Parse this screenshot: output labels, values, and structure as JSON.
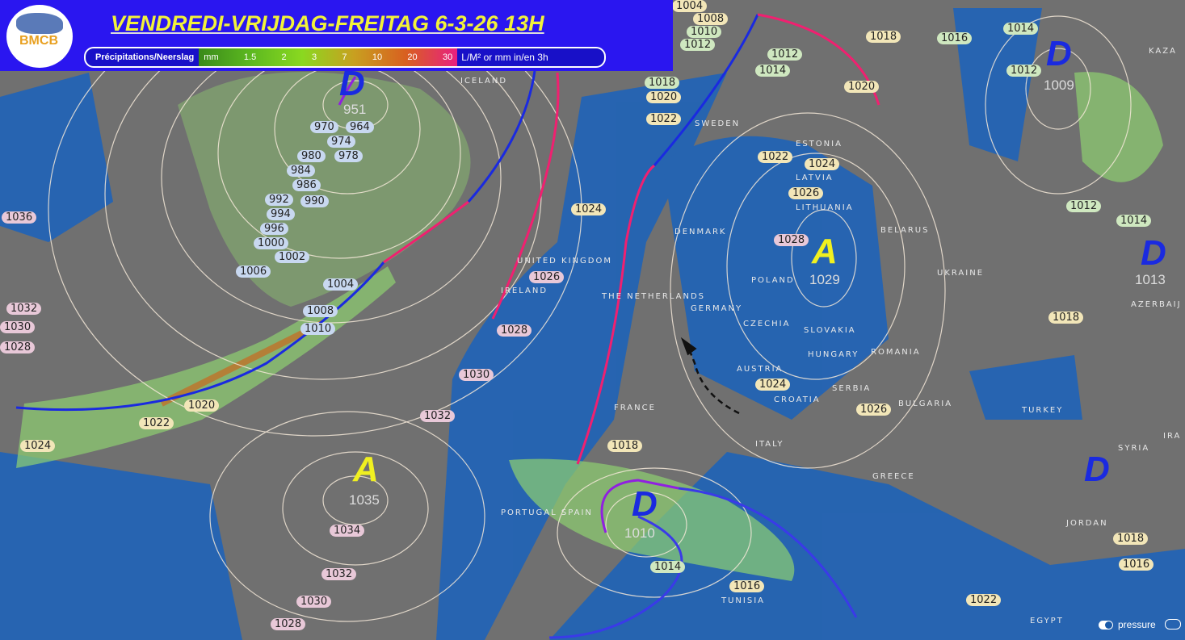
{
  "header": {
    "title": "VENDREDI-VRIJDAG-FREITAG  6-3-26  13H",
    "logo": "BMCB",
    "legend": {
      "label": "Précipitations/Neerslag",
      "scale": [
        "mm",
        "1.5",
        "2",
        "3",
        "7",
        "10",
        "20",
        "30"
      ],
      "unit": "L/M² or mm in/en 3h"
    }
  },
  "systems": [
    {
      "type": "D",
      "value": "951"
    },
    {
      "type": "D",
      "value": "1009"
    },
    {
      "type": "A",
      "value": "1029"
    },
    {
      "type": "D",
      "value": "1013"
    },
    {
      "type": "A",
      "value": "1035"
    },
    {
      "type": "D",
      "value": "1010"
    },
    {
      "type": "D",
      "value": ""
    }
  ],
  "isobar_labels": [
    "1004",
    "1008",
    "1010",
    "1012",
    "1018",
    "1020",
    "1022",
    "1012",
    "1014",
    "1018",
    "1020",
    "1016",
    "1014",
    "1012",
    "964",
    "970",
    "974",
    "978",
    "980",
    "984",
    "986",
    "990",
    "992",
    "994",
    "996",
    "1000",
    "1002",
    "1006",
    "1004",
    "1008",
    "1010",
    "1020",
    "1022",
    "1024",
    "1036",
    "1032",
    "1030",
    "1028",
    "1030",
    "1032",
    "1024",
    "1026",
    "1028",
    "1022",
    "1024",
    "1026",
    "1028",
    "1024",
    "1026",
    "1018",
    "1014",
    "1016",
    "1022",
    "1018",
    "1016",
    "1018",
    "1012",
    "1014",
    "1034",
    "1032",
    "1030",
    "1028"
  ],
  "countries": [
    "IRELAND",
    "UNITED KINGDOM",
    "DENMARK",
    "SWEDEN",
    "ESTONIA",
    "LATVIA",
    "LITHUANIA",
    "BELARUS",
    "POLAND",
    "GERMANY",
    "THE NETHERLANDS",
    "CZECHIA",
    "SLOVAKIA",
    "HUNGARY",
    "ROMANIA",
    "AUSTRIA",
    "CROATIA",
    "SERBIA",
    "BULGARIA",
    "FRANCE",
    "ITALY",
    "GREECE",
    "TURKEY",
    "SYRIA",
    "JORDAN",
    "EGYPT",
    "TUNISIA",
    "UKRAINE",
    "PORTUGAL SPAIN",
    "KAZA",
    "IRA",
    "AZERBAIJ",
    "ICELAND"
  ],
  "controls": {
    "pressure_label": "pressure",
    "pressure_on": true
  },
  "colors": {
    "header_bg": "#2a16f0",
    "title": "#f2f23a",
    "high": "#f0f020",
    "low": "#1a2ae0",
    "cold_front": "#1a2ae0",
    "warm_front": "#f02070",
    "occlusion": "#9020e0"
  }
}
